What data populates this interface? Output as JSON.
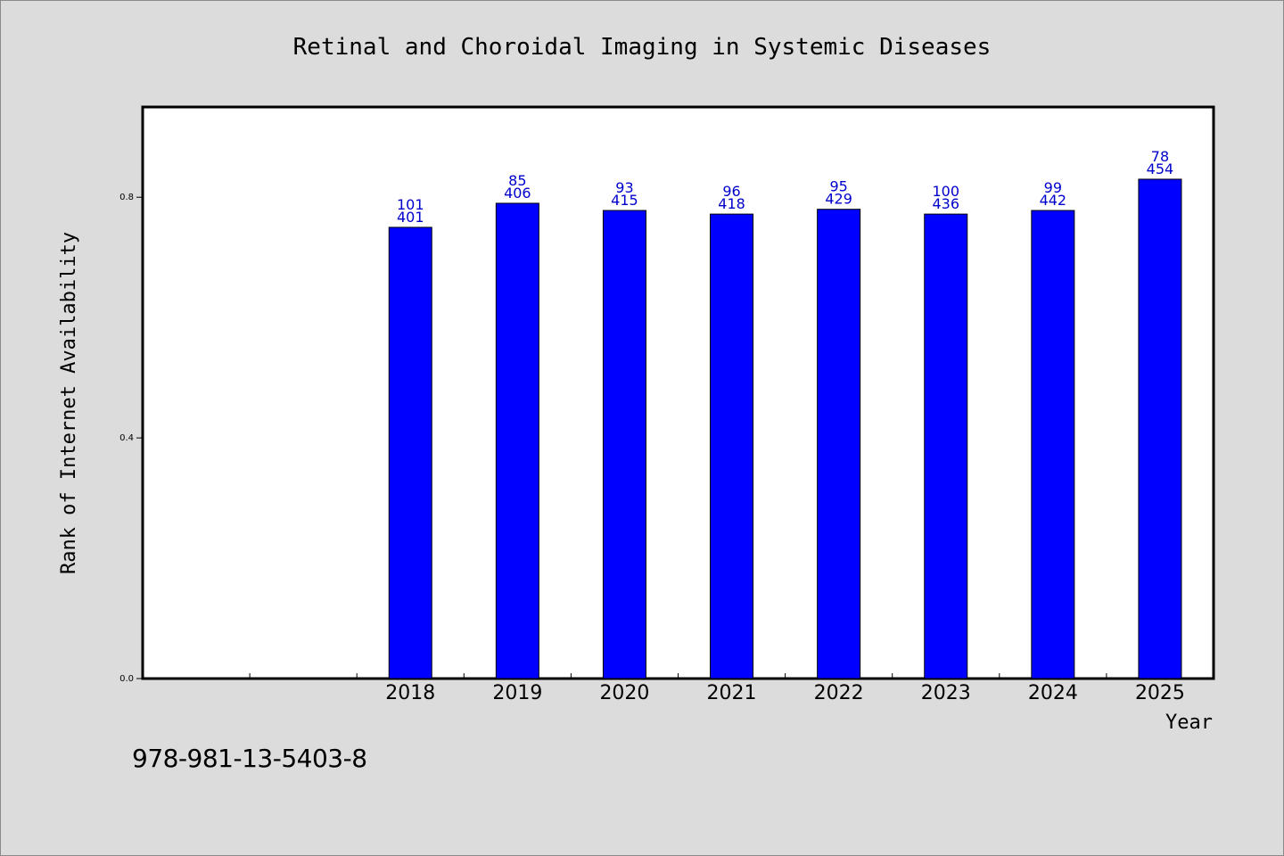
{
  "isbn": "978-981-13-5403-8",
  "chart_data": {
    "type": "bar",
    "title": "Retinal and Choroidal Imaging in Systemic Diseases",
    "xlabel": "Year",
    "ylabel": "Rank of Internet Availability",
    "ylim": [
      0,
      0.95
    ],
    "y_ticks": [
      "0.0",
      "0.4",
      "0.8"
    ],
    "x_slots": 10,
    "first_bar_slot": 2,
    "categories": [
      "2018",
      "2019",
      "2020",
      "2021",
      "2022",
      "2023",
      "2024",
      "2025"
    ],
    "values": [
      0.75,
      0.79,
      0.778,
      0.772,
      0.78,
      0.772,
      0.778,
      0.83
    ],
    "labels_top": [
      "101",
      "85",
      "93",
      "96",
      "95",
      "100",
      "99",
      "78"
    ],
    "labels_bottom": [
      "401",
      "406",
      "415",
      "418",
      "429",
      "436",
      "442",
      "454"
    ],
    "grid": false,
    "legend": "none",
    "colors": {
      "bar": "#0000ff",
      "label": "#0000cc",
      "axis": "#000000",
      "plot_bg": "#ffffff",
      "page_bg": "#dcdcdc"
    }
  }
}
